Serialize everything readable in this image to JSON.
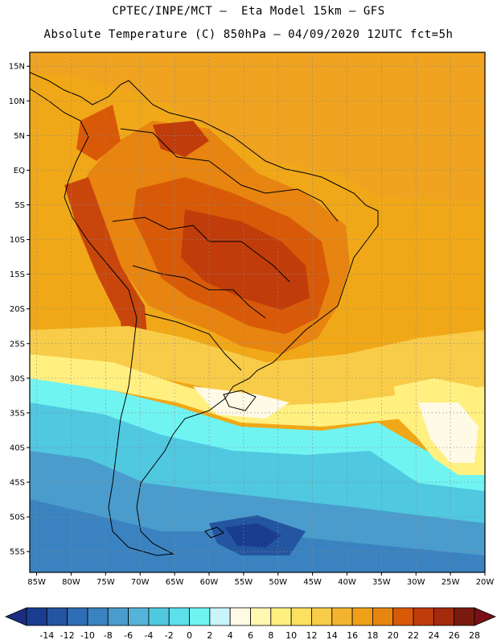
{
  "header": {
    "line1": "CPTEC/INPE/MCT –  Eta Model 15km – GFS",
    "line2": "Absolute Temperature (C) 850hPa – 04/09/2020 12UTC fct=5h"
  },
  "axes": {
    "lat_labels": [
      "15N",
      "10N",
      "5N",
      "EQ",
      "5S",
      "10S",
      "15S",
      "20S",
      "25S",
      "30S",
      "35S",
      "40S",
      "45S",
      "50S",
      "55S"
    ],
    "lat_values": [
      15,
      10,
      5,
      0,
      -5,
      -10,
      -15,
      -20,
      -25,
      -30,
      -35,
      -40,
      -45,
      -50,
      -55
    ],
    "lon_labels": [
      "85W",
      "80W",
      "75W",
      "70W",
      "65W",
      "60W",
      "55W",
      "50W",
      "45W",
      "40W",
      "35W",
      "30W",
      "25W",
      "20W"
    ],
    "lon_values": [
      -85,
      -80,
      -75,
      -70,
      -65,
      -60,
      -55,
      -50,
      -45,
      -40,
      -35,
      -30,
      -25,
      -20
    ],
    "lat_range": [
      -58,
      17
    ],
    "lon_range": [
      -86,
      -20
    ],
    "grid": true
  },
  "colorbar": {
    "labels": [
      "-14",
      "-12",
      "-10",
      "-8",
      "-6",
      "-4",
      "-2",
      "0",
      "2",
      "4",
      "6",
      "8",
      "10",
      "12",
      "14",
      "16",
      "18",
      "20",
      "22",
      "24",
      "26",
      "28"
    ],
    "colors": [
      "#1a3d8f",
      "#2455a0",
      "#2f6db4",
      "#3a83c0",
      "#4a9ccc",
      "#55b2d8",
      "#4fc8e0",
      "#5ce0ea",
      "#70f4f2",
      "#c8f4fa",
      "#fffae6",
      "#fff8b0",
      "#fff080",
      "#fce060",
      "#f8cc48",
      "#f2b430",
      "#efa018",
      "#e88410",
      "#d85a08",
      "#c03c0a",
      "#a52a0c",
      "#7a1a0e"
    ],
    "under_color": "#1a2d80",
    "over_color": "#7a0f18"
  }
}
